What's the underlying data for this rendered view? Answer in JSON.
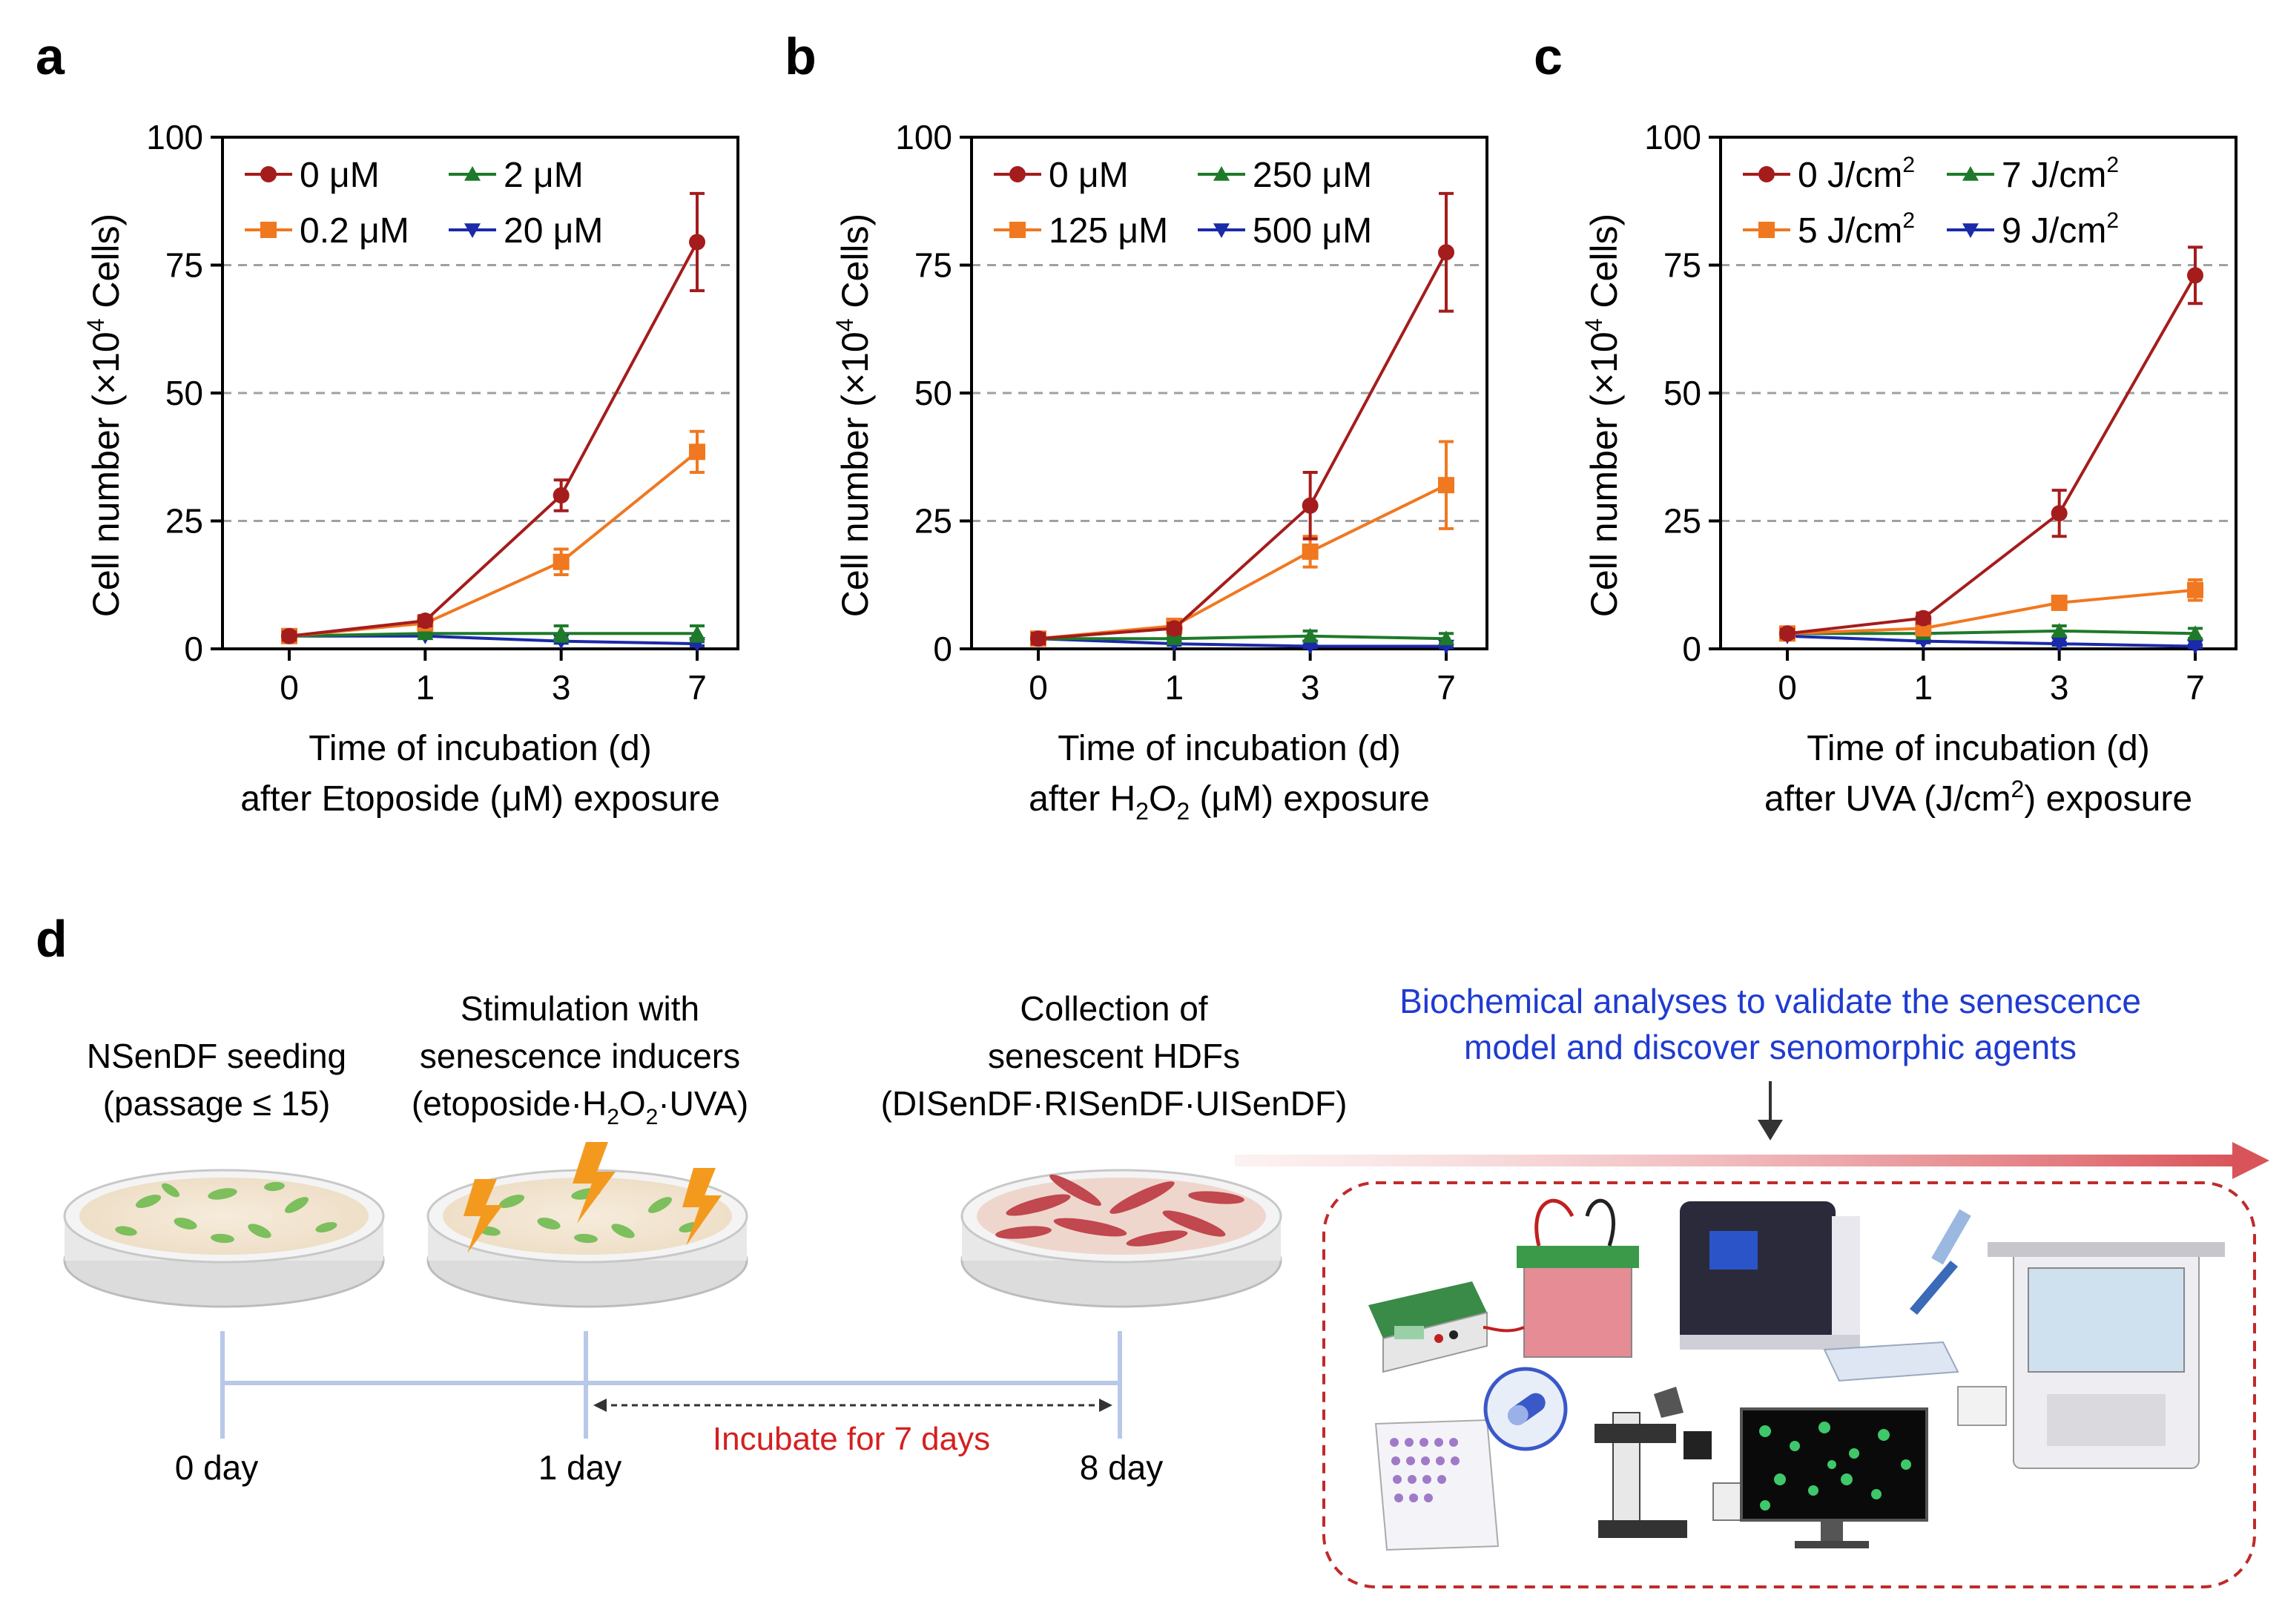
{
  "panel_labels": {
    "a": "a",
    "b": "b",
    "c": "c",
    "d": "d"
  },
  "colors": {
    "c0": "#a51c1c",
    "c1": "#f07820",
    "c2": "#1e7a2a",
    "c3": "#1a2aa8",
    "blue_text": "#1f3bd1",
    "red_text": "#d42020",
    "grid": "#a0a0a0"
  },
  "chart_data": [
    {
      "type": "line",
      "panel": "a",
      "title": "",
      "ylabel_prefix": "Cell number (×10",
      "ylabel_sup": "4",
      "ylabel_suffix": " Cells)",
      "xlabel_line1": "Time of incubation (d)",
      "xlabel_line2": {
        "prefix": "after Etoposide (μM) exposure",
        "sub": "",
        "mid": "",
        "sub2": "",
        "suffix": ""
      },
      "x": [
        0,
        1,
        3,
        7
      ],
      "x_ticks": [
        "0",
        "1",
        "3",
        "7"
      ],
      "y_ticks": [
        "0",
        "25",
        "50",
        "75",
        "100"
      ],
      "ylim": [
        0,
        100
      ],
      "grid_y": [
        25,
        50,
        75
      ],
      "series": [
        {
          "name": "0 μM",
          "name_main": "0 μM",
          "name_sup": "",
          "marker": "circle",
          "values": [
            2.5,
            5.5,
            30,
            79.5
          ],
          "err": [
            0.8,
            1,
            3,
            9.5
          ]
        },
        {
          "name": "0.2 μM",
          "name_main": "0.2 μM",
          "name_sup": "",
          "marker": "square",
          "values": [
            2.5,
            5,
            17,
            38.5
          ],
          "err": [
            0.5,
            1,
            2.5,
            4
          ]
        },
        {
          "name": "2 μM",
          "name_main": "2 μM",
          "name_sup": "",
          "marker": "triangle-up",
          "values": [
            2.5,
            3,
            3,
            3
          ],
          "err": [
            0.5,
            0.5,
            1.5,
            1.5
          ]
        },
        {
          "name": "20 μM",
          "name_main": "20 μM",
          "name_sup": "",
          "marker": "triangle-down",
          "values": [
            2.5,
            2.5,
            1.5,
            1
          ],
          "err": [
            0.4,
            0.4,
            0.4,
            0.4
          ]
        }
      ],
      "legend": "top-left"
    },
    {
      "type": "line",
      "panel": "b",
      "title": "",
      "ylabel_prefix": "Cell number (×10",
      "ylabel_sup": "4",
      "ylabel_suffix": " Cells)",
      "xlabel_line1": "Time of incubation (d)",
      "xlabel_line2": {
        "prefix": "after H",
        "sub": "2",
        "mid": "O",
        "sub2": "2",
        "suffix": " (μM) exposure"
      },
      "x": [
        0,
        1,
        3,
        7
      ],
      "x_ticks": [
        "0",
        "1",
        "3",
        "7"
      ],
      "y_ticks": [
        "0",
        "25",
        "50",
        "75",
        "100"
      ],
      "ylim": [
        0,
        100
      ],
      "grid_y": [
        25,
        50,
        75
      ],
      "series": [
        {
          "name": "0 μM",
          "name_main": "0 μM",
          "name_sup": "",
          "marker": "circle",
          "values": [
            2,
            4,
            28,
            77.5
          ],
          "err": [
            1,
            1,
            6.5,
            11.5
          ]
        },
        {
          "name": "125 μM",
          "name_main": "125 μM",
          "name_sup": "",
          "marker": "square",
          "values": [
            2,
            4.5,
            19,
            32
          ],
          "err": [
            1,
            1,
            3,
            8.5
          ]
        },
        {
          "name": "250 μM",
          "name_main": "250 μM",
          "name_sup": "",
          "marker": "triangle-up",
          "values": [
            2,
            2,
            2.5,
            2
          ],
          "err": [
            0.5,
            0.5,
            1,
            1
          ]
        },
        {
          "name": "500 μM",
          "name_main": "500 μM",
          "name_sup": "",
          "marker": "triangle-down",
          "values": [
            2,
            1,
            0.5,
            0.5
          ],
          "err": [
            0.3,
            0.3,
            0.3,
            0.3
          ]
        }
      ],
      "legend": "top-left"
    },
    {
      "type": "line",
      "panel": "c",
      "title": "",
      "ylabel_prefix": "Cell number (×10",
      "ylabel_sup": "4",
      "ylabel_suffix": " Cells)",
      "xlabel_line1": "Time of incubation (d)",
      "xlabel_line2": {
        "prefix": "after UVA (J/cm",
        "sup": "2",
        "suffix": ") exposure"
      },
      "x": [
        0,
        1,
        3,
        7
      ],
      "x_ticks": [
        "0",
        "1",
        "3",
        "7"
      ],
      "y_ticks": [
        "0",
        "25",
        "50",
        "75",
        "100"
      ],
      "ylim": [
        0,
        100
      ],
      "grid_y": [
        25,
        50,
        75
      ],
      "series": [
        {
          "name": "0 J/cm2",
          "name_main": "0 J/cm",
          "name_sup": "2",
          "marker": "circle",
          "values": [
            3,
            6,
            26.5,
            73
          ],
          "err": [
            0.8,
            1,
            4.5,
            5.5
          ]
        },
        {
          "name": "5 J/cm2",
          "name_main": "5 J/cm",
          "name_sup": "2",
          "marker": "square",
          "values": [
            3,
            4,
            9,
            11.5
          ],
          "err": [
            0.5,
            0.6,
            1,
            2
          ]
        },
        {
          "name": "7 J/cm2",
          "name_main": "7 J/cm",
          "name_sup": "2",
          "marker": "triangle-up",
          "values": [
            3,
            3,
            3.5,
            3
          ],
          "err": [
            0.5,
            0.5,
            1,
            1
          ]
        },
        {
          "name": "9 J/cm2",
          "name_main": "9 J/cm",
          "name_sup": "2",
          "marker": "triangle-down",
          "values": [
            2.5,
            1.5,
            1,
            0.5
          ],
          "err": [
            0.3,
            0.3,
            0.3,
            0.3
          ]
        }
      ],
      "legend": "top-left"
    }
  ],
  "schematic": {
    "step1": {
      "line1": "NSenDF seeding",
      "line2": "(passage ≤ 15)"
    },
    "step2": {
      "line1": "Stimulation with",
      "line2": "senescence inducers",
      "line3_prefix": "(etoposide·H",
      "line3_sub1": "2",
      "line3_mid": "O",
      "line3_sub2": "2",
      "line3_suffix": "·UVA)"
    },
    "step3": {
      "line1": "Collection of",
      "line2": "senescent HDFs",
      "line3": "(DISenDF·RISenDF·UISenDF)"
    },
    "analysis": {
      "line1": "Biochemical analyses to validate the senescence",
      "line2": "model and discover senomorphic agents"
    },
    "timeline": {
      "day0": "0 day",
      "day1": "1 day",
      "day8": "8 day",
      "incubate": "Incubate for 7 days"
    }
  }
}
